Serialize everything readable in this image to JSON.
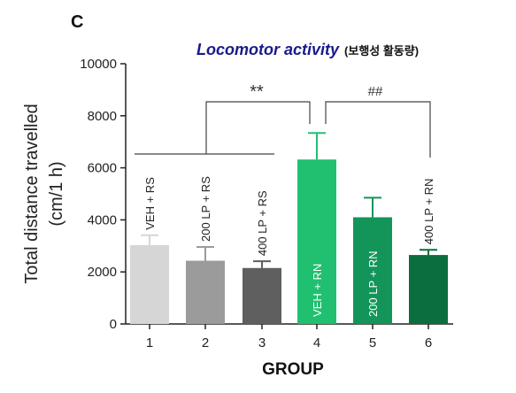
{
  "figure": {
    "panel_letter": "C",
    "title": "Locomotor activity",
    "title_sub": "(보행성 활동량)"
  },
  "chart_data": {
    "type": "bar",
    "title": "Locomotor activity (보행성 활동량)",
    "xlabel": "GROUP",
    "ylabel_line1": "Total distance travelled",
    "ylabel_line2": "(cm/1 h)",
    "ylim": [
      0,
      10000
    ],
    "yticks": [
      "0",
      "2000",
      "4000",
      "6000",
      "8000",
      "10000"
    ],
    "categories": [
      "1",
      "2",
      "3",
      "4",
      "5",
      "6"
    ],
    "values": [
      3030,
      2430,
      2150,
      6320,
      4100,
      2650
    ],
    "errors": [
      380,
      530,
      260,
      1020,
      750,
      200
    ],
    "bar_labels": [
      "VEH + RS",
      "200 LP + RS",
      "400 LP + RS",
      "VEH + RN",
      "200 LP + RN",
      "400 LP + RN"
    ],
    "colors": [
      "#d6d6d6",
      "#9b9b9b",
      "#5f5f5f",
      "#20c070",
      "#13955a",
      "#0b6e3f"
    ],
    "grid": false,
    "legend": "none",
    "annotations": [
      {
        "text": "**",
        "compares": "groups 1–3 vs 4"
      },
      {
        "text": "##",
        "compares": "group 4 vs 6"
      }
    ]
  }
}
